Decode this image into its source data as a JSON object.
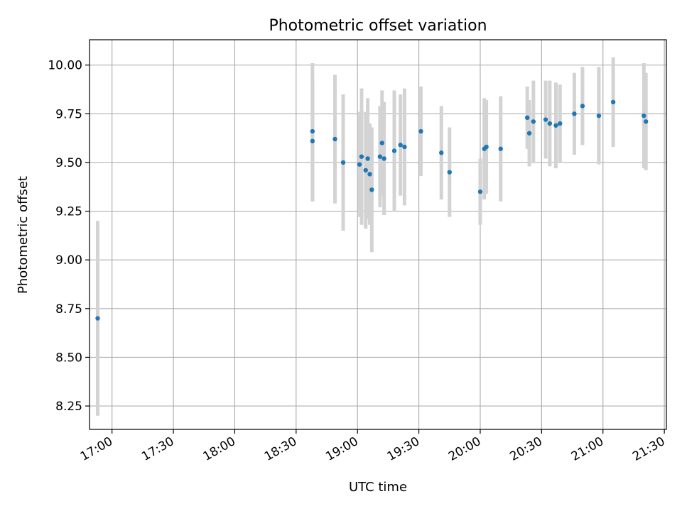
{
  "chart_data": {
    "type": "scatter",
    "title": "Photometric offset variation",
    "xlabel": "UTC time",
    "ylabel": "Photometric offset",
    "x_is_time": true,
    "xlim": [
      "16:49",
      "21:31"
    ],
    "ylim": [
      8.13,
      10.13
    ],
    "x_ticks": [
      "17:00",
      "17:30",
      "18:00",
      "18:30",
      "19:00",
      "19:30",
      "20:00",
      "20:30",
      "21:00",
      "21:30"
    ],
    "y_ticks": [
      8.25,
      8.5,
      8.75,
      9.0,
      9.25,
      9.5,
      9.75,
      10.0
    ],
    "y_tick_labels": [
      "8.25",
      "8.50",
      "8.75",
      "9.00",
      "9.25",
      "9.50",
      "9.75",
      "10.00"
    ],
    "grid": true,
    "series": [
      {
        "marker_color": "#1f77b4",
        "errorbar_color": "#d3d3d3",
        "points": [
          {
            "x": "16:53",
            "y": 8.7,
            "err": 0.5
          },
          {
            "x": "18:38",
            "y": 9.61,
            "err": 0.31
          },
          {
            "x": "18:38",
            "y": 9.66,
            "err": 0.35
          },
          {
            "x": "18:49",
            "y": 9.62,
            "err": 0.33
          },
          {
            "x": "18:53",
            "y": 9.5,
            "err": 0.35
          },
          {
            "x": "19:01",
            "y": 9.49,
            "err": 0.27
          },
          {
            "x": "19:02",
            "y": 9.53,
            "err": 0.35
          },
          {
            "x": "19:04",
            "y": 9.46,
            "err": 0.3
          },
          {
            "x": "19:05",
            "y": 9.52,
            "err": 0.31
          },
          {
            "x": "19:06",
            "y": 9.44,
            "err": 0.26
          },
          {
            "x": "19:07",
            "y": 9.36,
            "err": 0.32
          },
          {
            "x": "19:11",
            "y": 9.53,
            "err": 0.26
          },
          {
            "x": "19:12",
            "y": 9.6,
            "err": 0.27
          },
          {
            "x": "19:13",
            "y": 9.52,
            "err": 0.29
          },
          {
            "x": "19:18",
            "y": 9.56,
            "err": 0.31
          },
          {
            "x": "19:21",
            "y": 9.59,
            "err": 0.26
          },
          {
            "x": "19:23",
            "y": 9.58,
            "err": 0.3
          },
          {
            "x": "19:31",
            "y": 9.66,
            "err": 0.23
          },
          {
            "x": "19:41",
            "y": 9.55,
            "err": 0.24
          },
          {
            "x": "19:45",
            "y": 9.45,
            "err": 0.23
          },
          {
            "x": "20:00",
            "y": 9.35,
            "err": 0.17
          },
          {
            "x": "20:02",
            "y": 9.57,
            "err": 0.26
          },
          {
            "x": "20:03",
            "y": 9.58,
            "err": 0.24
          },
          {
            "x": "20:10",
            "y": 9.57,
            "err": 0.27
          },
          {
            "x": "20:23",
            "y": 9.73,
            "err": 0.16
          },
          {
            "x": "20:24",
            "y": 9.65,
            "err": 0.17
          },
          {
            "x": "20:26",
            "y": 9.71,
            "err": 0.21
          },
          {
            "x": "20:32",
            "y": 9.72,
            "err": 0.2
          },
          {
            "x": "20:34",
            "y": 9.7,
            "err": 0.22
          },
          {
            "x": "20:37",
            "y": 9.69,
            "err": 0.22
          },
          {
            "x": "20:39",
            "y": 9.7,
            "err": 0.2
          },
          {
            "x": "20:46",
            "y": 9.75,
            "err": 0.21
          },
          {
            "x": "20:50",
            "y": 9.79,
            "err": 0.2
          },
          {
            "x": "20:58",
            "y": 9.74,
            "err": 0.25
          },
          {
            "x": "21:05",
            "y": 9.81,
            "err": 0.23
          },
          {
            "x": "21:20",
            "y": 9.74,
            "err": 0.27
          },
          {
            "x": "21:21",
            "y": 9.71,
            "err": 0.25
          }
        ]
      }
    ]
  }
}
